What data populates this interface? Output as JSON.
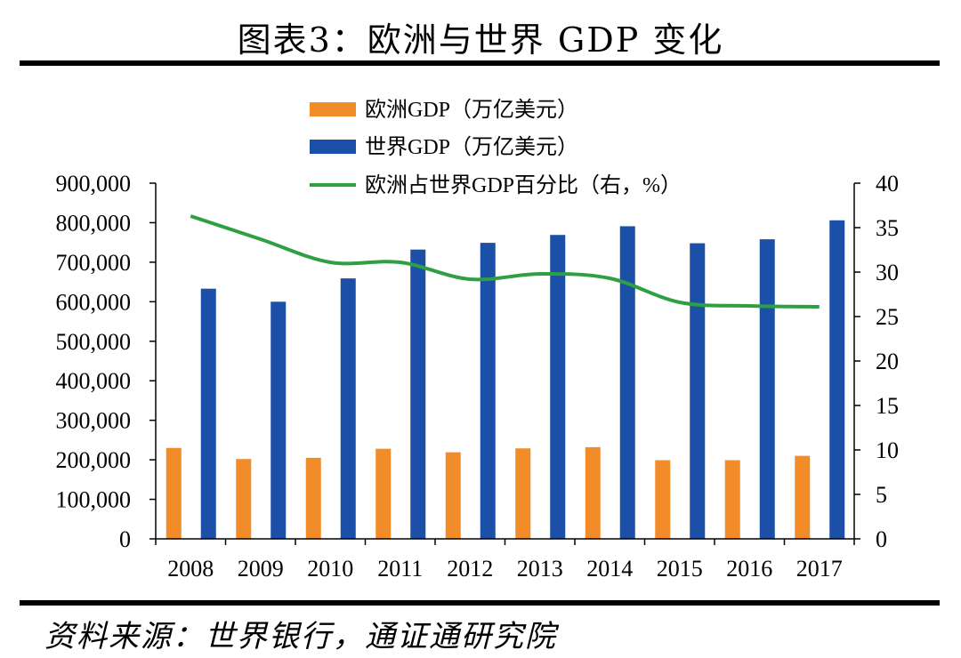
{
  "title": "图表3：欧洲与世界 GDP 变化",
  "source": "资料来源：世界银行，通证通研究院",
  "colors": {
    "europe": "#F28C28",
    "world": "#1B4FA8",
    "share": "#2EA043",
    "axis": "#000000"
  },
  "chart_data": {
    "type": "bar",
    "categories": [
      "2008",
      "2009",
      "2010",
      "2011",
      "2012",
      "2013",
      "2014",
      "2015",
      "2016",
      "2017"
    ],
    "series": [
      {
        "name": "欧洲GDP（万亿美元）",
        "type": "bar",
        "axis": "left",
        "values": [
          230000,
          202000,
          205000,
          228000,
          219000,
          229000,
          232000,
          199000,
          199000,
          210000
        ]
      },
      {
        "name": "世界GDP（万亿美元）",
        "type": "bar",
        "axis": "left",
        "values": [
          633000,
          600000,
          659000,
          732000,
          749000,
          769000,
          791000,
          748000,
          758000,
          806000
        ]
      },
      {
        "name": "欧洲占世界GDP百分比（右，%）",
        "type": "line",
        "axis": "right",
        "values": [
          36.3,
          33.7,
          31.1,
          31.1,
          29.2,
          29.8,
          29.3,
          26.6,
          26.2,
          26.1
        ]
      }
    ],
    "y_left": {
      "min": 0,
      "max": 900000,
      "ticks": [
        "0",
        "100,000",
        "200,000",
        "300,000",
        "400,000",
        "500,000",
        "600,000",
        "700,000",
        "800,000",
        "900,000"
      ]
    },
    "y_right": {
      "min": 0,
      "max": 40,
      "ticks": [
        "0",
        "5",
        "10",
        "15",
        "20",
        "25",
        "30",
        "35",
        "40"
      ]
    },
    "legend_position": "top-center"
  }
}
